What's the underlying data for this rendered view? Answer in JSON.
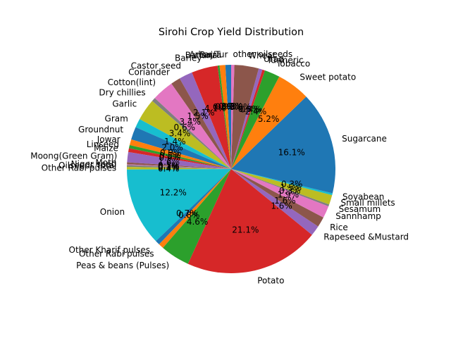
{
  "chart_data": {
    "type": "pie",
    "title": "Sirohi Crop Yield Distribution",
    "start_angle_deg": 90,
    "counterclock": true,
    "slices": [
      {
        "label": "Arhar/Tur",
        "value": 0.9,
        "pct_label": "0.9%",
        "color": "#1f77b4"
      },
      {
        "label": "Bajra",
        "value": 0.9,
        "pct_label": "0.9%",
        "color": "#ff7f0e"
      },
      {
        "label": "Banana",
        "value": 0.3,
        "pct_label": "0.3%",
        "color": "#2ca02c"
      },
      {
        "label": "Barley",
        "value": 4.1,
        "pct_label": "4.1%",
        "color": "#d62728"
      },
      {
        "label": "Castor seed",
        "value": 2.1,
        "pct_label": "2.1%",
        "color": "#9467bd"
      },
      {
        "label": "Coriander",
        "value": 1.5,
        "pct_label": "1.5%",
        "color": "#8c564b"
      },
      {
        "label": "Cotton(lint)",
        "value": 3.4,
        "pct_label": "3.4%",
        "color": "#e377c2"
      },
      {
        "label": "Dry chillies",
        "value": 0.6,
        "pct_label": "0.6%",
        "color": "#7f7f7f"
      },
      {
        "label": "Garlic",
        "value": 3.4,
        "pct_label": "3.4%",
        "color": "#bcbd22"
      },
      {
        "label": "Gram",
        "value": 1.4,
        "pct_label": "1.4%",
        "color": "#17becf"
      },
      {
        "label": "Groundnut",
        "value": 2.0,
        "pct_label": "2.0%",
        "color": "#1f77b4"
      },
      {
        "label": "Jowar",
        "value": 0.9,
        "pct_label": "0.9%",
        "color": "#ff7f0e"
      },
      {
        "label": "Linseed",
        "value": 0.5,
        "pct_label": "0.5%",
        "color": "#2ca02c"
      },
      {
        "label": "Maize",
        "value": 0.6,
        "pct_label": "0.6%",
        "color": "#d62728"
      },
      {
        "label": "Moong(Green Gram)",
        "value": 1.6,
        "pct_label": "1.6%",
        "color": "#9467bd"
      },
      {
        "label": "Moth",
        "value": 0.3,
        "pct_label": "0.3%",
        "color": "#8c564b"
      },
      {
        "label": "Niger seed",
        "value": 0.1,
        "pct_label": "0.1%",
        "color": "#e377c2"
      },
      {
        "label": "Oilseeds total",
        "value": 0.3,
        "pct_label": "0.3%",
        "color": "#7f7f7f"
      },
      {
        "label": "Other  Rabi pulses",
        "value": 0.4,
        "pct_label": "0.4%",
        "color": "#bcbd22"
      },
      {
        "label": "Onion",
        "value": 12.2,
        "pct_label": "12.2%",
        "color": "#17becf"
      },
      {
        "label": "Other Kharif pulses",
        "value": 0.7,
        "pct_label": "0.7%",
        "color": "#1f77b4"
      },
      {
        "label": "Other Rabi pulses",
        "value": 0.8,
        "pct_label": "0.8%",
        "color": "#ff7f0e"
      },
      {
        "label": "Peas & beans (Pulses)",
        "value": 4.6,
        "pct_label": "4.6%",
        "color": "#2ca02c"
      },
      {
        "label": "Potato",
        "value": 21.1,
        "pct_label": "21.1%",
        "color": "#d62728"
      },
      {
        "label": "Rapeseed &Mustard",
        "value": 1.6,
        "pct_label": "1.6%",
        "color": "#9467bd"
      },
      {
        "label": "Rice",
        "value": 1.6,
        "pct_label": "1.6%",
        "color": "#8c564b"
      },
      {
        "label": "Sannhamp",
        "value": 1.9,
        "pct_label": "1.9%",
        "color": "#e377c2"
      },
      {
        "label": "Sesamum",
        "value": 0.3,
        "pct_label": "0.3%",
        "color": "#7f7f7f"
      },
      {
        "label": "Small millets",
        "value": 1.5,
        "pct_label": "1.5%",
        "color": "#bcbd22"
      },
      {
        "label": "Soyabean",
        "value": 0.3,
        "pct_label": "0.3%",
        "color": "#17becf"
      },
      {
        "label": "Sugarcane",
        "value": 16.1,
        "pct_label": "16.1%",
        "color": "#1f77b4"
      },
      {
        "label": "Sweet potato",
        "value": 5.2,
        "pct_label": "5.2%",
        "color": "#ff7f0e"
      },
      {
        "label": "Tobacco",
        "value": 2.4,
        "pct_label": "2.4%",
        "color": "#2ca02c"
      },
      {
        "label": "Turmeric",
        "value": 0.4,
        "pct_label": "0.4%",
        "color": "#d62728"
      },
      {
        "label": "Urad",
        "value": 0.6,
        "pct_label": "0.6%",
        "color": "#9467bd"
      },
      {
        "label": "Wheat",
        "value": 3.8,
        "pct_label": "3.8%",
        "color": "#8c564b"
      },
      {
        "label": "other oilseeds",
        "value": 0.5,
        "pct_label": "0.5%",
        "color": "#e377c2"
      }
    ]
  }
}
